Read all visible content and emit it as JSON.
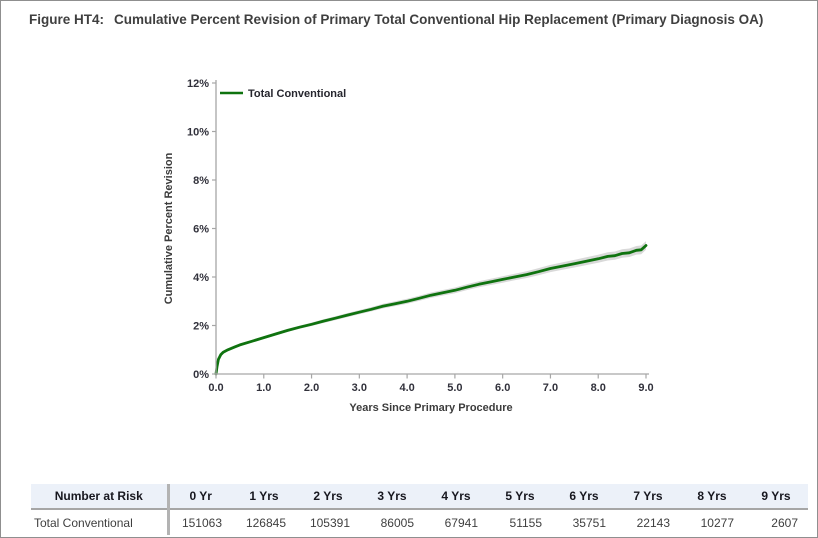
{
  "figure": {
    "label": "Figure HT4:",
    "title": "Cumulative Percent Revision of Primary Total Conventional Hip Replacement (Primary Diagnosis OA)"
  },
  "colors": {
    "line_green": "#0f730f",
    "ci_band_gray": "#d9d9d9",
    "axis_gray": "#a6a6a6",
    "table_header_bg": "#ecf1f9",
    "title_text": "#3f3f3f"
  },
  "chart_data": {
    "type": "line",
    "title": "Cumulative Percent Revision of Primary Total Conventional Hip Replacement (Primary Diagnosis OA)",
    "xlabel": "Years Since Primary Procedure",
    "ylabel": "Cumulative Percent Revision",
    "xlim": [
      0,
      9
    ],
    "ylim": [
      0,
      12
    ],
    "grid": false,
    "xticks": {
      "values": [
        0,
        1,
        2,
        3,
        4,
        5,
        6,
        7,
        8,
        9
      ],
      "labels": [
        "0.0",
        "1.0",
        "2.0",
        "3.0",
        "4.0",
        "5.0",
        "6.0",
        "7.0",
        "8.0",
        "9.0"
      ]
    },
    "yticks": {
      "values": [
        0,
        2,
        4,
        6,
        8,
        10,
        12
      ],
      "labels": [
        "0%",
        "2%",
        "4%",
        "6%",
        "8%",
        "10%",
        "12%"
      ]
    },
    "legend": {
      "position": "top-left-inside",
      "entries": [
        {
          "label": "Total Conventional",
          "color": "#0f730f"
        }
      ]
    },
    "series": [
      {
        "name": "Total Conventional",
        "color": "#0f730f",
        "units": "percent",
        "points": [
          [
            0,
            0
          ],
          [
            0.02,
            0.3
          ],
          [
            0.05,
            0.6
          ],
          [
            0.1,
            0.8
          ],
          [
            0.15,
            0.9
          ],
          [
            0.25,
            1.0
          ],
          [
            0.4,
            1.12
          ],
          [
            0.5,
            1.2
          ],
          [
            0.75,
            1.35
          ],
          [
            1.0,
            1.5
          ],
          [
            1.25,
            1.65
          ],
          [
            1.5,
            1.8
          ],
          [
            1.75,
            1.93
          ],
          [
            2.0,
            2.05
          ],
          [
            2.25,
            2.18
          ],
          [
            2.5,
            2.3
          ],
          [
            2.75,
            2.43
          ],
          [
            3.0,
            2.55
          ],
          [
            3.25,
            2.67
          ],
          [
            3.5,
            2.8
          ],
          [
            3.75,
            2.9
          ],
          [
            4.0,
            3.0
          ],
          [
            4.25,
            3.12
          ],
          [
            4.5,
            3.25
          ],
          [
            4.75,
            3.35
          ],
          [
            5.0,
            3.45
          ],
          [
            5.25,
            3.58
          ],
          [
            5.5,
            3.7
          ],
          [
            5.75,
            3.8
          ],
          [
            6.0,
            3.9
          ],
          [
            6.25,
            4.0
          ],
          [
            6.5,
            4.1
          ],
          [
            6.75,
            4.22
          ],
          [
            7.0,
            4.35
          ],
          [
            7.25,
            4.45
          ],
          [
            7.5,
            4.55
          ],
          [
            7.75,
            4.65
          ],
          [
            8.0,
            4.75
          ],
          [
            8.2,
            4.85
          ],
          [
            8.35,
            4.88
          ],
          [
            8.5,
            4.97
          ],
          [
            8.65,
            5.0
          ],
          [
            8.8,
            5.1
          ],
          [
            8.9,
            5.12
          ],
          [
            9.0,
            5.3
          ]
        ],
        "ci_band": {
          "color": "#d9d9d9",
          "halfwidth_at_x0": 0.04,
          "halfwidth_at_x9": 0.18
        }
      }
    ]
  },
  "risk_table": {
    "headers": [
      "Number at Risk",
      "0 Yr",
      "1 Yrs",
      "2 Yrs",
      "3 Yrs",
      "4 Yrs",
      "5 Yrs",
      "6 Yrs",
      "7 Yrs",
      "8 Yrs",
      "9 Yrs"
    ],
    "rows": [
      {
        "label": "Total Conventional",
        "values": [
          "151063",
          "126845",
          "105391",
          "86005",
          "67941",
          "51155",
          "35751",
          "22143",
          "10277",
          "2607"
        ]
      }
    ]
  }
}
